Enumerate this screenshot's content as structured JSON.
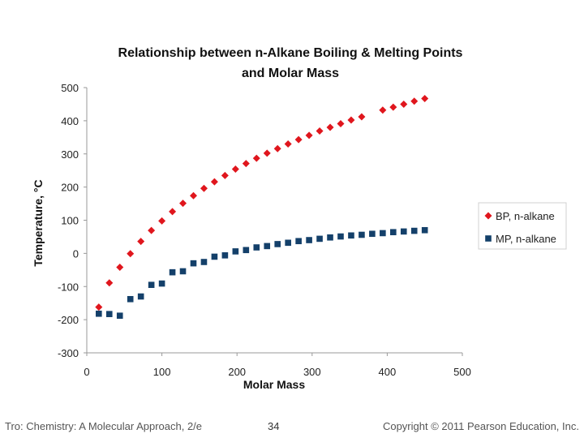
{
  "footer": {
    "left": "Tro: Chemistry: A Molecular Approach, 2/e",
    "page": "34",
    "right": "Copyright © 2011 Pearson Education, Inc."
  },
  "chart_data": {
    "type": "scatter",
    "title_lines": [
      "Relationship between n-Alkane Boiling & Melting Points",
      "and Molar Mass"
    ],
    "xlabel": "Molar Mass",
    "ylabel": "Temperature, °C",
    "xlim": [
      0,
      500
    ],
    "ylim": [
      -300,
      500
    ],
    "x_ticks": [
      0,
      100,
      200,
      300,
      400,
      500
    ],
    "y_ticks": [
      500,
      400,
      300,
      200,
      100,
      0,
      -100,
      -200,
      -300
    ],
    "grid": false,
    "legend_position": "right",
    "series": [
      {
        "name": "BP, n-alkane",
        "marker": "diamond",
        "color": "#e0161d",
        "x": [
          16,
          30,
          44,
          58,
          72,
          86,
          100,
          114,
          128,
          142,
          156,
          170,
          184,
          198,
          212,
          226,
          240,
          254,
          268,
          282,
          296,
          310,
          324,
          338,
          352,
          366,
          394,
          408,
          422,
          436,
          450
        ],
        "y": [
          -162,
          -89,
          -42,
          -1,
          36,
          69,
          98,
          126,
          151,
          174,
          196,
          216,
          235,
          254,
          271,
          287,
          302,
          316,
          330,
          343,
          356,
          369,
          380,
          391,
          402,
          412,
          432,
          441,
          450,
          459,
          467
        ]
      },
      {
        "name": "MP, n-alkane",
        "marker": "square",
        "color": "#14406a",
        "x": [
          16,
          30,
          44,
          58,
          72,
          86,
          100,
          114,
          128,
          142,
          156,
          170,
          184,
          198,
          212,
          226,
          240,
          254,
          268,
          282,
          296,
          310,
          324,
          338,
          352,
          366,
          380,
          394,
          408,
          422,
          436,
          450
        ],
        "y": [
          -182,
          -183,
          -188,
          -138,
          -130,
          -95,
          -91,
          -57,
          -54,
          -30,
          -26,
          -10,
          -6,
          6,
          10,
          18,
          22,
          28,
          32,
          37,
          40,
          44,
          48,
          51,
          54,
          56,
          59,
          61,
          64,
          66,
          68,
          70
        ]
      }
    ]
  }
}
